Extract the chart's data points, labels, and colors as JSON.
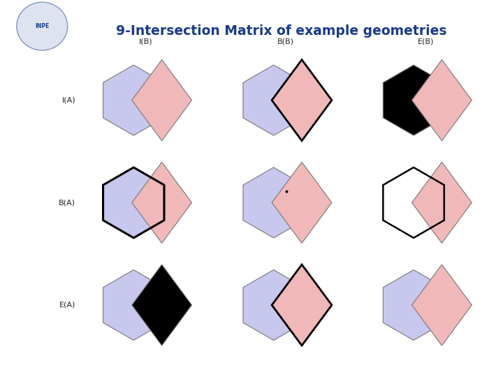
{
  "title": "9-Intersection Matrix of example geometries",
  "col_labels": [
    "I(B)",
    "B(B)",
    "E(B)"
  ],
  "row_labels": [
    "I(A)",
    "B(A)",
    "E(A)"
  ],
  "bg_color": "#ffffff",
  "title_color": "#1a3a8c",
  "hex_color": "#c8c8ee",
  "diamond_color": "#f0b8b8",
  "yellow_color": "#ede8a0",
  "black_color": "#000000",
  "label_color": "#222222",
  "border_color": "#555555",
  "slide_bg": "#c8d4e8",
  "top_bar_color": "#1a3a8c",
  "logo_bg": "#dde4f0"
}
